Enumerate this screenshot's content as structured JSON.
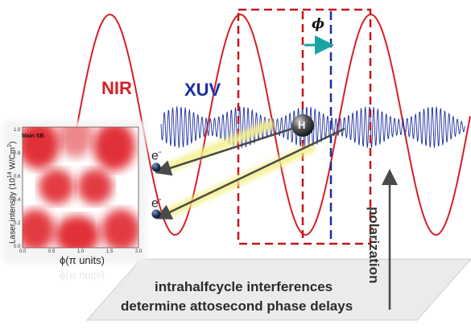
{
  "labels": {
    "nir": "NIR",
    "xuv": "XUV",
    "phi": "ϕ",
    "polarization": "polarization",
    "hydrogen": "H",
    "electron": "e",
    "electron_sup": "-",
    "caption_line1": "intrahalfcycle  interferences",
    "caption_line2": "determine attosecond phase delays"
  },
  "inset": {
    "title": "Main SB",
    "ylabel": "Laser intensity (10",
    "ylabel_exp": "14",
    "ylabel_unit": " W/Cm",
    "ylabel_unit_exp": "2",
    "ylabel_end": ")",
    "xlabel": "ϕ(π units)",
    "xlabel_reflection": "ϕ(π units)",
    "x_ticks": [
      "0.0",
      "0.5",
      "1.0",
      "1.5",
      "2.0"
    ],
    "y_ticks": [
      "0.0",
      "0.2",
      "0.4",
      "0.6",
      "0.8",
      "1.0"
    ]
  },
  "colors": {
    "nir": "#d61f26",
    "xuv": "#1d2fa0",
    "box_dash": "#c4161c",
    "phi_arrow": "#1aa3a3",
    "electron": "#22395a",
    "beam": "#f4f08a",
    "plane": "#ebebeb"
  },
  "icons": {
    "hydrogen": "hydrogen-atom-icon",
    "electron": "electron-sphere-icon",
    "arrow": "arrow-icon"
  }
}
